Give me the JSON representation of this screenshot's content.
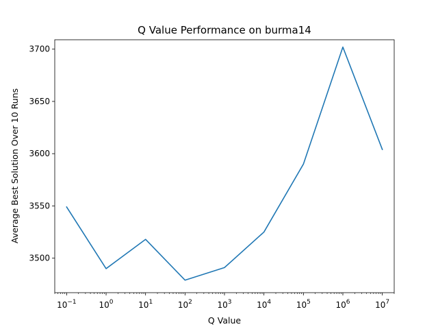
{
  "chart_data": {
    "type": "line",
    "title": "Q Value Performance on burma14",
    "xlabel": "Q Value",
    "ylabel": "Average Best Solution Over 10 Runs",
    "xscale": "log",
    "xlim": [
      0.05,
      20000000
    ],
    "ylim": [
      3467,
      3709
    ],
    "x_ticks": [
      {
        "base": "10",
        "exp": "−1",
        "value": 0.1
      },
      {
        "base": "10",
        "exp": "0",
        "value": 1
      },
      {
        "base": "10",
        "exp": "1",
        "value": 10
      },
      {
        "base": "10",
        "exp": "2",
        "value": 100
      },
      {
        "base": "10",
        "exp": "3",
        "value": 1000
      },
      {
        "base": "10",
        "exp": "4",
        "value": 10000
      },
      {
        "base": "10",
        "exp": "5",
        "value": 100000
      },
      {
        "base": "10",
        "exp": "6",
        "value": 1000000
      },
      {
        "base": "10",
        "exp": "7",
        "value": 10000000
      }
    ],
    "y_ticks": [
      {
        "label": "3500",
        "value": 3500
      },
      {
        "label": "3550",
        "value": 3550
      },
      {
        "label": "3600",
        "value": 3600
      },
      {
        "label": "3650",
        "value": 3650
      },
      {
        "label": "3700",
        "value": 3700
      }
    ],
    "series": [
      {
        "color": "#1f77b4",
        "x": [
          0.1,
          1,
          10,
          100,
          1000,
          10000,
          100000,
          1000000,
          10000000
        ],
        "values": [
          3549,
          3490,
          3518,
          3479,
          3491,
          3525,
          3590,
          3702,
          3604
        ]
      }
    ],
    "grid": false,
    "legend": "none"
  }
}
